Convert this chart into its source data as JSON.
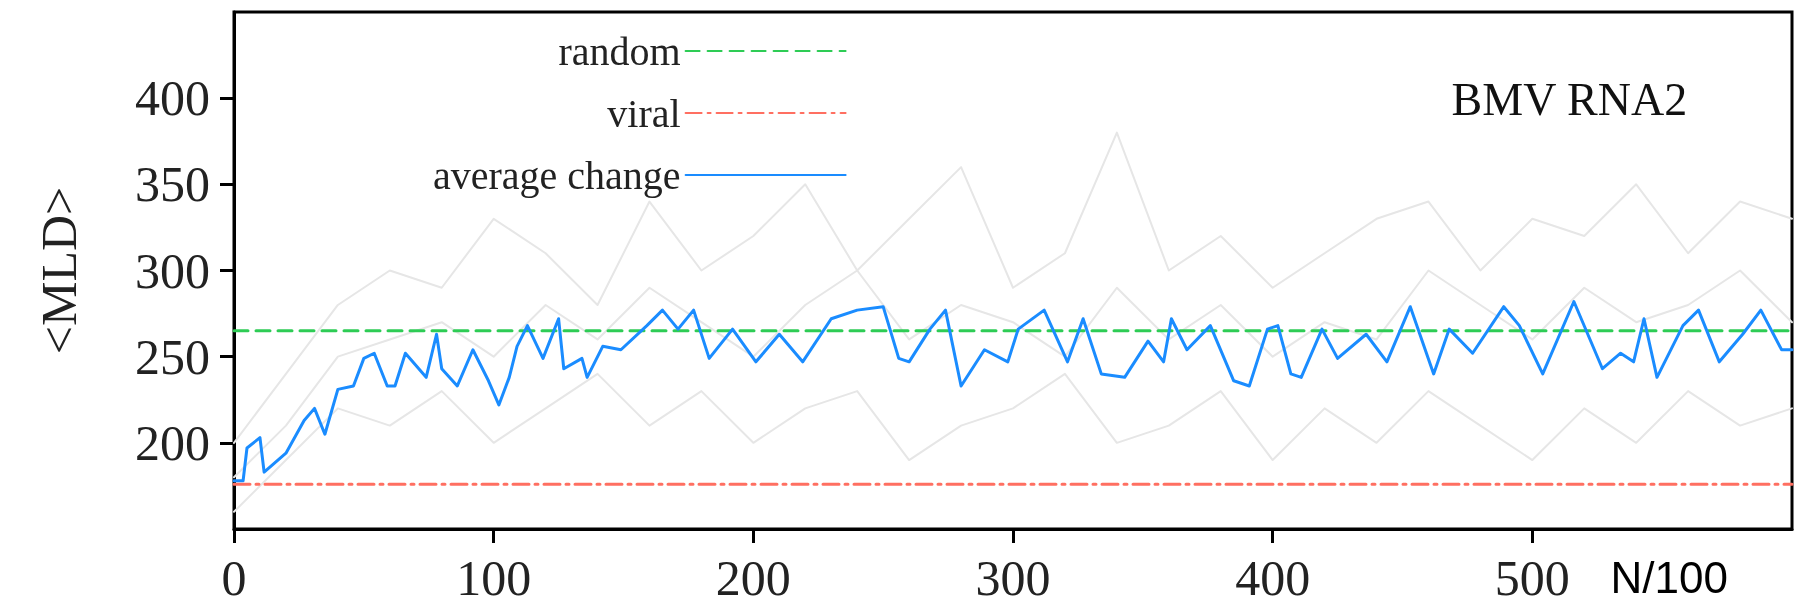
{
  "chart_data": {
    "type": "line",
    "ylabel": "<MLD>",
    "xlabel": "N/100",
    "annotations": [
      "BMV RNA2"
    ],
    "xlim": [
      0,
      600
    ],
    "ylim": [
      150,
      450
    ],
    "xticks": [
      0,
      100,
      200,
      300,
      400,
      500
    ],
    "yticks": [
      200,
      250,
      300,
      350,
      400
    ],
    "grid": false,
    "legend": "top left",
    "marker": "none",
    "series": [
      {
        "color": "#e6e6e6",
        "line_style": "solid",
        "x": [
          0,
          20,
          40,
          60,
          80,
          100,
          120,
          140,
          160,
          180,
          200,
          220,
          240,
          260,
          280,
          300,
          320,
          340,
          360,
          380,
          400,
          420,
          440,
          460,
          480,
          500,
          520,
          540,
          560,
          580,
          600
        ],
        "values": [
          200,
          240,
          280,
          300,
          290,
          330,
          310,
          280,
          340,
          300,
          320,
          350,
          300,
          330,
          360,
          290,
          310,
          380,
          300,
          320,
          290,
          310,
          330,
          340,
          300,
          330,
          320,
          350,
          310,
          340,
          330
        ]
      },
      {
        "color": "#e6e6e6",
        "line_style": "solid",
        "x": [
          0,
          20,
          40,
          60,
          80,
          100,
          120,
          140,
          160,
          180,
          200,
          220,
          240,
          260,
          280,
          300,
          320,
          340,
          360,
          380,
          400,
          420,
          440,
          460,
          480,
          500,
          520,
          540,
          560,
          580,
          600
        ],
        "values": [
          160,
          190,
          220,
          210,
          230,
          200,
          220,
          240,
          210,
          230,
          200,
          220,
          230,
          190,
          210,
          220,
          240,
          200,
          210,
          230,
          190,
          220,
          200,
          230,
          210,
          190,
          220,
          200,
          230,
          210,
          220
        ]
      },
      {
        "color": "#e6e6e6",
        "line_style": "solid",
        "x": [
          0,
          20,
          40,
          60,
          80,
          100,
          120,
          140,
          160,
          180,
          200,
          220,
          240,
          260,
          280,
          300,
          320,
          340,
          360,
          380,
          400,
          420,
          440,
          460,
          480,
          500,
          520,
          540,
          560,
          580,
          600
        ],
        "values": [
          180,
          210,
          250,
          260,
          270,
          250,
          280,
          260,
          290,
          270,
          250,
          280,
          300,
          260,
          280,
          270,
          250,
          290,
          260,
          280,
          250,
          270,
          260,
          300,
          280,
          260,
          290,
          270,
          280,
          300,
          270
        ]
      },
      {
        "name": "random",
        "color": "#2ecc55",
        "line_style": "dashed",
        "x": [
          0,
          600
        ],
        "values": [
          265,
          265
        ]
      },
      {
        "name": "viral",
        "color": "#ff6f61",
        "line_style": "dashdot",
        "x": [
          0,
          600
        ],
        "values": [
          176,
          176
        ]
      },
      {
        "name": "average change",
        "color": "#1a8cff",
        "line_style": "solid",
        "x": [
          0,
          3.5,
          5,
          10,
          11.6,
          20,
          27,
          31,
          35,
          40,
          46,
          50,
          54,
          59,
          62,
          66,
          74,
          78,
          80,
          86,
          92,
          98,
          102,
          106,
          109,
          113,
          119,
          125,
          127,
          134,
          136,
          142,
          149,
          159,
          165,
          171,
          177,
          183,
          192,
          201,
          210,
          219,
          230,
          240,
          250,
          256,
          260,
          268,
          274,
          280,
          289,
          298,
          302,
          312,
          321,
          327,
          334,
          343,
          352,
          358,
          361,
          367,
          376,
          385,
          391,
          398,
          402,
          407,
          411,
          419,
          425,
          436,
          444,
          453,
          462,
          468,
          477,
          489,
          495,
          504,
          516,
          527,
          534,
          539,
          543,
          548,
          558,
          564,
          572,
          581,
          588,
          596,
          600
        ],
        "values": [
          178,
          178,
          197,
          203,
          183,
          194,
          213,
          220,
          205,
          231,
          233,
          249,
          252,
          233,
          233,
          252,
          238,
          263,
          243,
          233,
          254,
          236,
          222,
          238,
          256,
          268,
          249,
          272,
          243,
          249,
          238,
          256,
          254,
          268,
          277,
          266,
          277,
          249,
          266,
          247,
          263,
          247,
          272,
          277,
          279,
          249,
          247,
          266,
          277,
          233,
          254,
          247,
          266,
          277,
          247,
          272,
          240,
          238,
          259,
          247,
          272,
          254,
          268,
          236,
          233,
          266,
          268,
          240,
          238,
          266,
          249,
          263,
          247,
          279,
          240,
          266,
          252,
          279,
          268,
          240,
          282,
          243,
          252,
          247,
          272,
          238,
          268,
          277,
          247,
          263,
          277,
          254,
          254
        ]
      }
    ]
  }
}
